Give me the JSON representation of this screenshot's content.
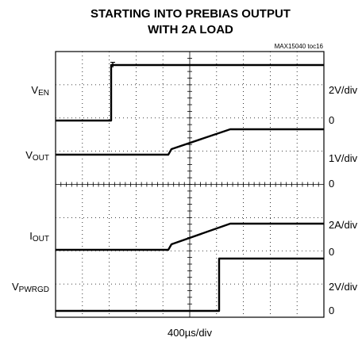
{
  "title": [
    "STARTING INTO PREBIAS OUTPUT",
    "WITH 2A LOAD"
  ],
  "figure_id": "MAX15040 toc16",
  "channels": [
    {
      "name": {
        "main": "V",
        "sub": "EN"
      },
      "scale": "2V/div",
      "zero": "0"
    },
    {
      "name": {
        "main": "V",
        "sub": "OUT"
      },
      "scale": "1V/div",
      "zero": "0"
    },
    {
      "name": {
        "main": "I",
        "sub": "OUT"
      },
      "scale": "2A/div",
      "zero": "0"
    },
    {
      "name": {
        "main": "V",
        "sub": "PWRGD"
      },
      "scale": "2V/div",
      "zero": "0"
    }
  ],
  "timebase": "400µs/div"
}
